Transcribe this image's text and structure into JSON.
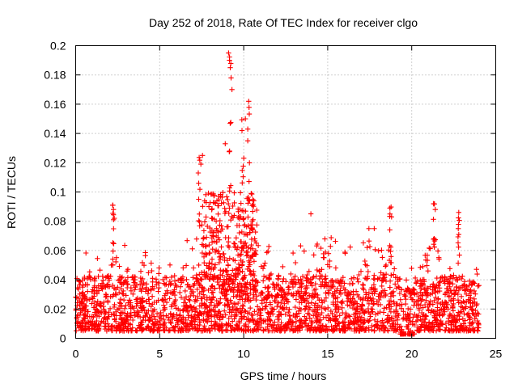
{
  "chart_data": {
    "type": "scatter",
    "title": "Day 252 of 2018, Rate Of TEC Index for receiver clgo",
    "xlabel": "GPS time / hours",
    "ylabel": "ROTI / TECUs",
    "xlim": [
      0,
      25
    ],
    "ylim": [
      0,
      0.2
    ],
    "xticks": [
      0,
      5,
      10,
      15,
      20,
      25
    ],
    "xtick_labels": [
      "0",
      "5",
      "10",
      "15",
      "20",
      "25"
    ],
    "yticks": [
      0,
      0.02,
      0.04,
      0.06,
      0.08,
      0.1,
      0.12,
      0.14,
      0.16,
      0.18,
      0.2
    ],
    "ytick_labels": [
      "0",
      "0.02",
      "0.04",
      "0.06",
      "0.08",
      "0.1",
      "0.12",
      "0.14",
      "0.16",
      "0.18",
      "0.2"
    ],
    "grid": true,
    "marker": "+",
    "color": "#ff0000",
    "series": [
      {
        "name": "ROTI",
        "x_range": [
          0,
          24
        ],
        "baseline_band": [
          0.005,
          0.035
        ],
        "notable_points": [
          {
            "x": 2.2,
            "y": 0.091
          },
          {
            "x": 2.25,
            "y": 0.088
          },
          {
            "x": 2.3,
            "y": 0.082
          },
          {
            "x": 7.3,
            "y": 0.113
          },
          {
            "x": 7.45,
            "y": 0.119
          },
          {
            "x": 7.55,
            "y": 0.125
          },
          {
            "x": 8.9,
            "y": 0.133
          },
          {
            "x": 9.1,
            "y": 0.195
          },
          {
            "x": 9.15,
            "y": 0.19
          },
          {
            "x": 9.2,
            "y": 0.185
          },
          {
            "x": 9.25,
            "y": 0.178
          },
          {
            "x": 9.3,
            "y": 0.17
          },
          {
            "x": 9.9,
            "y": 0.142
          },
          {
            "x": 10.1,
            "y": 0.15
          },
          {
            "x": 10.3,
            "y": 0.162
          },
          {
            "x": 10.45,
            "y": 0.099
          },
          {
            "x": 10.6,
            "y": 0.094
          },
          {
            "x": 14.0,
            "y": 0.085
          },
          {
            "x": 18.7,
            "y": 0.089
          },
          {
            "x": 18.8,
            "y": 0.083
          },
          {
            "x": 21.3,
            "y": 0.092
          },
          {
            "x": 21.4,
            "y": 0.088
          },
          {
            "x": 22.8,
            "y": 0.086
          }
        ]
      }
    ]
  }
}
